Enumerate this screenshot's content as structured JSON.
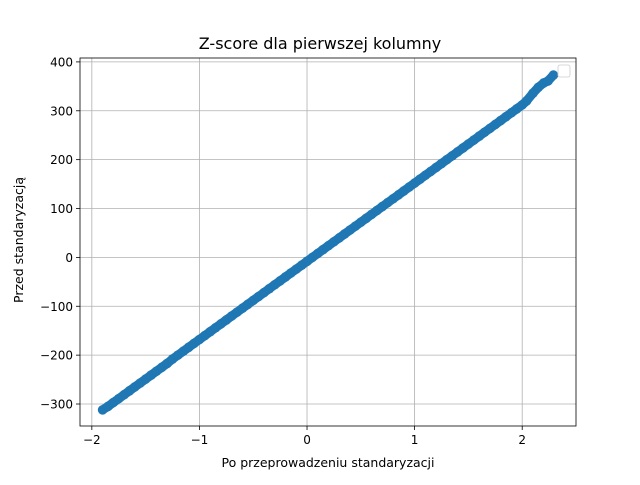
{
  "chart_data": {
    "type": "scatter",
    "title": "Z-score dla pierwszej kolumny",
    "xlabel": "Po przeprowadzeniu standaryzacji",
    "ylabel": "Przed standaryzacją",
    "xlim": [
      -2.11,
      2.5
    ],
    "ylim": [
      -345,
      408
    ],
    "grid": true,
    "legend": "top-right",
    "color": "#1f77b4",
    "xticks": [
      {
        "value": -2,
        "label": "−2"
      },
      {
        "value": -1,
        "label": "−1"
      },
      {
        "value": 0,
        "label": "0"
      },
      {
        "value": 1,
        "label": "1"
      },
      {
        "value": 2,
        "label": "2"
      }
    ],
    "yticks": [
      {
        "value": -300,
        "label": "−300"
      },
      {
        "value": -200,
        "label": "−200"
      },
      {
        "value": -100,
        "label": "−100"
      },
      {
        "value": 0,
        "label": "0"
      },
      {
        "value": 100,
        "label": "100"
      },
      {
        "value": 200,
        "label": "200"
      },
      {
        "value": 300,
        "label": "300"
      },
      {
        "value": 400,
        "label": "400"
      }
    ],
    "points": [
      {
        "x": -1.9,
        "y": -312
      },
      {
        "x": -1.85,
        "y": -305
      },
      {
        "x": -1.8,
        "y": -297
      },
      {
        "x": -1.75,
        "y": -289
      },
      {
        "x": -1.7,
        "y": -281
      },
      {
        "x": -1.65,
        "y": -273
      },
      {
        "x": -1.6,
        "y": -265
      },
      {
        "x": -1.55,
        "y": -257
      },
      {
        "x": -1.5,
        "y": -249
      },
      {
        "x": -1.45,
        "y": -241
      },
      {
        "x": -1.4,
        "y": -233
      },
      {
        "x": -1.35,
        "y": -225
      },
      {
        "x": -1.3,
        "y": -217
      },
      {
        "x": -1.25,
        "y": -208
      },
      {
        "x": -1.2,
        "y": -200
      },
      {
        "x": -1.15,
        "y": -192
      },
      {
        "x": -1.1,
        "y": -184
      },
      {
        "x": -1.05,
        "y": -176
      },
      {
        "x": -1.0,
        "y": -168
      },
      {
        "x": -0.95,
        "y": -160
      },
      {
        "x": -0.9,
        "y": -152
      },
      {
        "x": -0.85,
        "y": -144
      },
      {
        "x": -0.8,
        "y": -136
      },
      {
        "x": -0.75,
        "y": -128
      },
      {
        "x": -0.7,
        "y": -120
      },
      {
        "x": -0.65,
        "y": -112
      },
      {
        "x": -0.6,
        "y": -104
      },
      {
        "x": -0.55,
        "y": -96
      },
      {
        "x": -0.5,
        "y": -88
      },
      {
        "x": -0.45,
        "y": -80
      },
      {
        "x": -0.4,
        "y": -72
      },
      {
        "x": -0.35,
        "y": -64
      },
      {
        "x": -0.3,
        "y": -56
      },
      {
        "x": -0.25,
        "y": -48
      },
      {
        "x": -0.2,
        "y": -40
      },
      {
        "x": -0.15,
        "y": -32
      },
      {
        "x": -0.1,
        "y": -24
      },
      {
        "x": -0.05,
        "y": -16
      },
      {
        "x": 0.0,
        "y": -8
      },
      {
        "x": 0.05,
        "y": 0
      },
      {
        "x": 0.1,
        "y": 8
      },
      {
        "x": 0.15,
        "y": 16
      },
      {
        "x": 0.2,
        "y": 24
      },
      {
        "x": 0.25,
        "y": 32
      },
      {
        "x": 0.3,
        "y": 40
      },
      {
        "x": 0.35,
        "y": 48
      },
      {
        "x": 0.4,
        "y": 56
      },
      {
        "x": 0.45,
        "y": 64
      },
      {
        "x": 0.5,
        "y": 72
      },
      {
        "x": 0.55,
        "y": 80
      },
      {
        "x": 0.6,
        "y": 88
      },
      {
        "x": 0.65,
        "y": 96
      },
      {
        "x": 0.7,
        "y": 104
      },
      {
        "x": 0.75,
        "y": 112
      },
      {
        "x": 0.8,
        "y": 120
      },
      {
        "x": 0.85,
        "y": 128
      },
      {
        "x": 0.9,
        "y": 136
      },
      {
        "x": 0.95,
        "y": 144
      },
      {
        "x": 1.0,
        "y": 152
      },
      {
        "x": 1.05,
        "y": 160
      },
      {
        "x": 1.1,
        "y": 168
      },
      {
        "x": 1.15,
        "y": 176
      },
      {
        "x": 1.2,
        "y": 184
      },
      {
        "x": 1.25,
        "y": 192
      },
      {
        "x": 1.3,
        "y": 200
      },
      {
        "x": 1.35,
        "y": 208
      },
      {
        "x": 1.4,
        "y": 216
      },
      {
        "x": 1.45,
        "y": 224
      },
      {
        "x": 1.5,
        "y": 232
      },
      {
        "x": 1.55,
        "y": 240
      },
      {
        "x": 1.6,
        "y": 248
      },
      {
        "x": 1.65,
        "y": 256
      },
      {
        "x": 1.7,
        "y": 264
      },
      {
        "x": 1.75,
        "y": 272
      },
      {
        "x": 1.8,
        "y": 280
      },
      {
        "x": 1.85,
        "y": 288
      },
      {
        "x": 1.9,
        "y": 296
      },
      {
        "x": 1.95,
        "y": 304
      },
      {
        "x": 2.0,
        "y": 312
      },
      {
        "x": 2.04,
        "y": 320
      },
      {
        "x": 2.1,
        "y": 336
      },
      {
        "x": 2.15,
        "y": 348
      },
      {
        "x": 2.2,
        "y": 357
      },
      {
        "x": 2.24,
        "y": 361
      },
      {
        "x": 2.29,
        "y": 373
      }
    ]
  }
}
